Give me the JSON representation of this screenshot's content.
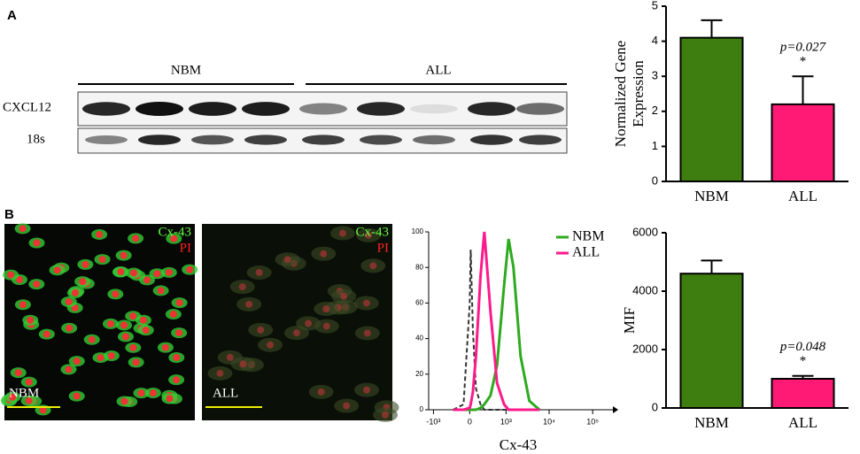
{
  "panels": {
    "a": "A",
    "b": "B"
  },
  "blot": {
    "groups": [
      "NBM",
      "ALL"
    ],
    "rows": [
      "CXCL12",
      "18s"
    ]
  },
  "images": [
    {
      "stain1": "Cx-43",
      "stain2": "PI",
      "label": "NBM"
    },
    {
      "stain1": "Cx-43",
      "stain2": "PI",
      "label": "ALL"
    }
  ],
  "chart_data": [
    {
      "type": "bar",
      "ylabel": [
        "Normalized Gene",
        "Expression"
      ],
      "categories": [
        "NBM",
        "ALL"
      ],
      "values": [
        4.1,
        2.2
      ],
      "errors": [
        0.5,
        0.8
      ],
      "colors": [
        "#3e7d10",
        "#ff1a75"
      ],
      "ylim": [
        0,
        5
      ],
      "yticks": [
        0,
        1,
        2,
        3,
        4,
        5
      ],
      "annotation": "p=0.027",
      "significance": "*"
    },
    {
      "type": "bar",
      "ylabel": [
        "MIF"
      ],
      "categories": [
        "NBM",
        "ALL"
      ],
      "values": [
        4600,
        1000
      ],
      "errors": [
        450,
        100
      ],
      "colors": [
        "#3e7d10",
        "#ff1a75"
      ],
      "ylim": [
        0,
        6000
      ],
      "yticks": [
        0,
        2000,
        4000,
        6000
      ],
      "annotation": "p=0.048",
      "significance": "*"
    },
    {
      "type": "line",
      "xlabel": "Cx-43",
      "xscale": "biexponential",
      "xlim": [
        -1300,
        220000
      ],
      "ylim": [
        0,
        100
      ],
      "yticks": [
        0,
        20,
        40,
        60,
        80,
        100
      ],
      "xticks": [
        {
          "value": -1000,
          "label": "-10³"
        },
        0,
        {
          "value": 1000,
          "label": "10³"
        },
        {
          "value": 10000,
          "label": "10⁴"
        },
        {
          "value": 100000,
          "label": "10⁵"
        }
      ],
      "x": [
        -300,
        -100,
        0,
        15,
        50,
        100,
        180,
        255,
        400,
        600,
        900,
        1150,
        1500,
        2200,
        3500,
        6000
      ],
      "legend": "upper right",
      "series": [
        {
          "color": "#333333",
          "dashed": true,
          "values": [
            0,
            3,
            60,
            90,
            45,
            12,
            3,
            0,
            0,
            0,
            0,
            0,
            0,
            0,
            0,
            0
          ]
        },
        {
          "name": "NBM",
          "color": "#2eaa1e",
          "values": [
            0,
            0,
            0,
            0,
            0,
            0,
            1,
            3,
            8,
            25,
            70,
            96,
            80,
            30,
            5,
            0
          ]
        },
        {
          "name": "ALL",
          "color": "#ff1a8c",
          "values": [
            0,
            0,
            1,
            3,
            10,
            30,
            75,
            100,
            55,
            15,
            3,
            0,
            0,
            0,
            0,
            0
          ]
        }
      ]
    }
  ]
}
